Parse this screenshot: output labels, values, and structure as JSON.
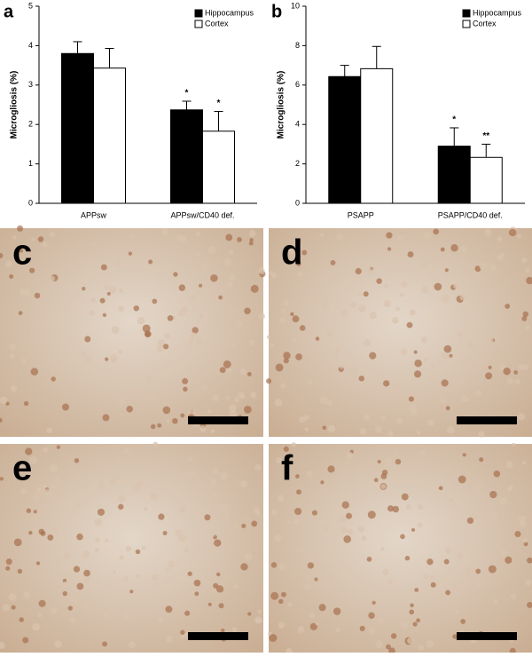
{
  "chart_data": [
    {
      "type": "bar",
      "panel_label": "a",
      "y_label": "Microgliosis (%)",
      "categories": [
        "APPsw",
        "APPsw/CD40 def."
      ],
      "series": [
        {
          "name": "Hippocampus",
          "color": "#000000",
          "values": [
            3.8,
            2.37
          ],
          "errors": [
            0.3,
            0.22
          ]
        },
        {
          "name": "Cortex",
          "color": "#ffffff",
          "values": [
            3.43,
            1.83
          ],
          "errors": [
            0.5,
            0.5
          ]
        }
      ],
      "annotations": [
        {
          "text": "*",
          "series": 0,
          "category": 1
        },
        {
          "text": "*",
          "series": 1,
          "category": 1
        }
      ],
      "ylim": [
        0,
        5
      ],
      "yticks": [
        0,
        1,
        2,
        3,
        4,
        5
      ],
      "legend": "top-right"
    },
    {
      "type": "bar",
      "panel_label": "b",
      "y_label": "Microgliosis (%)",
      "categories": [
        "PSAPP",
        "PSAPP/CD40 def."
      ],
      "series": [
        {
          "name": "Hippocampus",
          "color": "#000000",
          "values": [
            6.43,
            2.9
          ],
          "errors": [
            0.57,
            0.93
          ]
        },
        {
          "name": "Cortex",
          "color": "#ffffff",
          "values": [
            6.83,
            2.33
          ],
          "errors": [
            1.13,
            0.67
          ]
        }
      ],
      "annotations": [
        {
          "text": "*",
          "series": 0,
          "category": 1
        },
        {
          "text": "**",
          "series": 1,
          "category": 1
        }
      ],
      "ylim": [
        0,
        10
      ],
      "yticks": [
        0,
        2,
        4,
        6,
        8,
        10
      ],
      "legend": "top-right"
    }
  ],
  "image_panels": [
    {
      "label": "c"
    },
    {
      "label": "d"
    },
    {
      "label": "e"
    },
    {
      "label": "f"
    }
  ]
}
